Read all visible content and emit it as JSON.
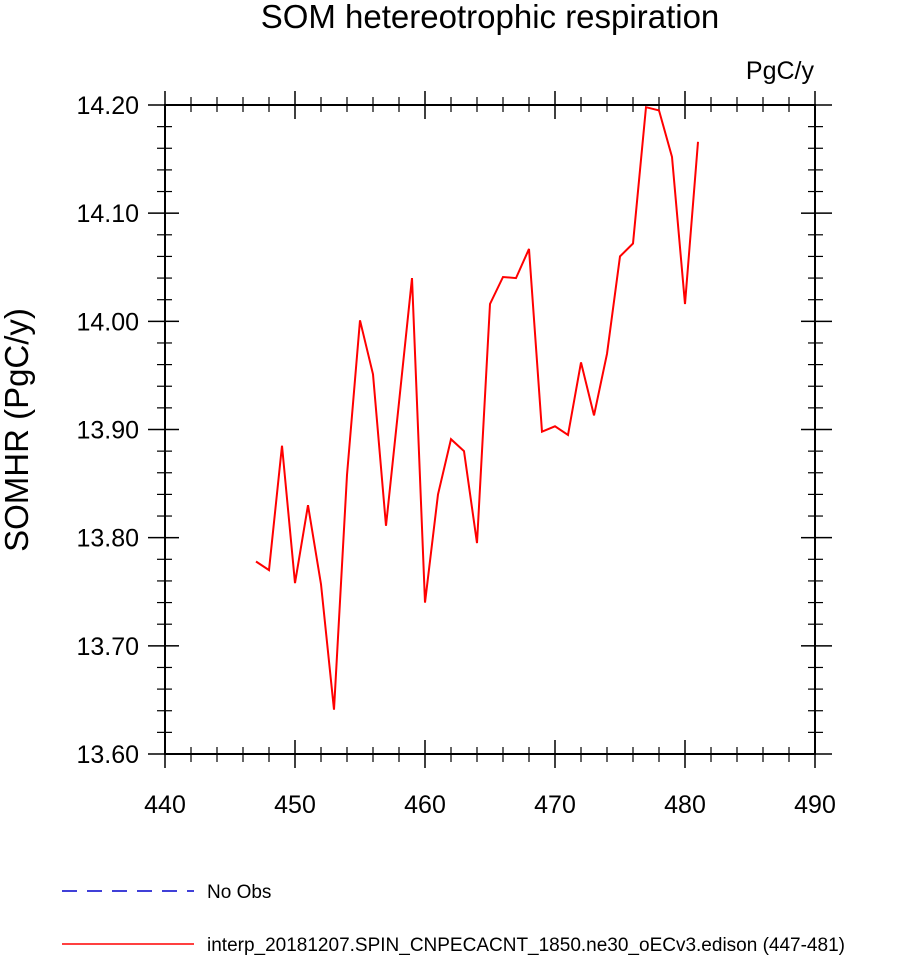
{
  "chart_data": {
    "type": "line",
    "title": "SOM hetereotrophic respiration",
    "units": "PgC/y",
    "xlabel": "",
    "ylabel": "SOMHR  (PgC/y)",
    "xlim": [
      440,
      490
    ],
    "ylim": [
      13.6,
      14.2
    ],
    "x_ticks": [
      "440",
      "450",
      "460",
      "470",
      "480",
      "490"
    ],
    "y_ticks": [
      "13.60",
      "13.70",
      "13.80",
      "13.90",
      "14.00",
      "14.10",
      "14.20"
    ],
    "grid": false,
    "legend_position": "bottom-left",
    "series": [
      {
        "name": "No Obs",
        "color": "#0000cc",
        "dash": "dashed",
        "x": [],
        "y": []
      },
      {
        "name": "interp_20181207.SPIN_CNPECACNT_1850.ne30_oECv3.edison (447-481)",
        "color": "#ff0000",
        "dash": "solid",
        "x": [
          447,
          448,
          449,
          450,
          451,
          452,
          453,
          454,
          455,
          456,
          457,
          458,
          459,
          460,
          461,
          462,
          463,
          464,
          465,
          466,
          467,
          468,
          469,
          470,
          471,
          472,
          473,
          474,
          475,
          476,
          477,
          478,
          479,
          480,
          481
        ],
        "y": [
          13.778,
          13.77,
          13.885,
          13.758,
          13.83,
          13.757,
          13.641,
          13.858,
          14.001,
          13.951,
          13.811,
          13.925,
          14.04,
          13.74,
          13.84,
          13.891,
          13.88,
          13.795,
          14.016,
          14.041,
          14.04,
          14.067,
          13.898,
          13.903,
          13.895,
          13.962,
          13.913,
          13.97,
          14.06,
          14.072,
          14.198,
          14.195,
          14.152,
          14.016,
          14.166
        ]
      }
    ]
  }
}
